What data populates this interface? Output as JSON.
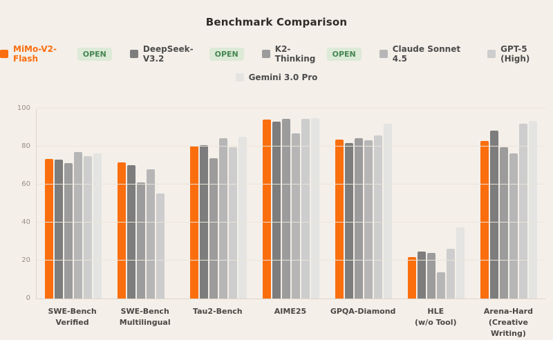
{
  "title": "Benchmark Comparison",
  "colors": {
    "background": "#f4efe9",
    "accent_orange": "#fb6e0e",
    "badge_bg": "#dcead7",
    "badge_text": "#458550",
    "gridline": "#eae4da",
    "axis_line": "#ddd5c9",
    "tick_text": "#968e82",
    "category_text": "#4b4641",
    "legend_text": "#4c4c4c",
    "title_text": "#2f2c28"
  },
  "legend": {
    "open_badge_label": "OPEN",
    "rows": [
      5,
      1
    ]
  },
  "y_axis": {
    "ticks": [
      0,
      20,
      40,
      60,
      80,
      100
    ]
  },
  "chart_data": {
    "type": "bar",
    "title": "Benchmark Comparison",
    "xlabel": "",
    "ylabel": "",
    "ylim": [
      0,
      100
    ],
    "grid": true,
    "legend_position": "top",
    "categories": [
      "SWE-Bench\nVerified",
      "SWE-Bench\nMultilingual",
      "Tau2-Bench",
      "AIME25",
      "GPQA-Diamond",
      "HLE\n(w/o Tool)",
      "Arena-Hard\n(Creative Writing)"
    ],
    "series": [
      {
        "name": "MiMo-V2-Flash",
        "color": "#fb6e0e",
        "open": true,
        "values": [
          73.4,
          71.7,
          80.3,
          94.1,
          83.5,
          22.0,
          83.0
        ]
      },
      {
        "name": "DeepSeek-V3.2",
        "color": "#7d7d7d",
        "open": true,
        "values": [
          73.0,
          70.2,
          80.6,
          93.2,
          82.0,
          24.8,
          88.5
        ]
      },
      {
        "name": "K2-Thinking",
        "color": "#9c9c9c",
        "open": true,
        "values": [
          71.3,
          61.1,
          74.0,
          94.5,
          84.5,
          23.9,
          79.5
        ]
      },
      {
        "name": "Claude Sonnet 4.5",
        "color": "#b6b6b6",
        "open": false,
        "values": [
          77.2,
          68.0,
          84.5,
          87.0,
          83.4,
          13.7,
          76.5
        ]
      },
      {
        "name": "GPT-5 (High)",
        "color": "#cdcdcd",
        "open": false,
        "values": [
          74.9,
          55.3,
          79.5,
          94.6,
          85.7,
          26.3,
          92.0
        ]
      },
      {
        "name": "Gemini 3.0 Pro",
        "color": "#e4e4e2",
        "open": false,
        "values": [
          76.2,
          null,
          85.2,
          95.0,
          91.9,
          37.5,
          93.5
        ]
      }
    ]
  }
}
